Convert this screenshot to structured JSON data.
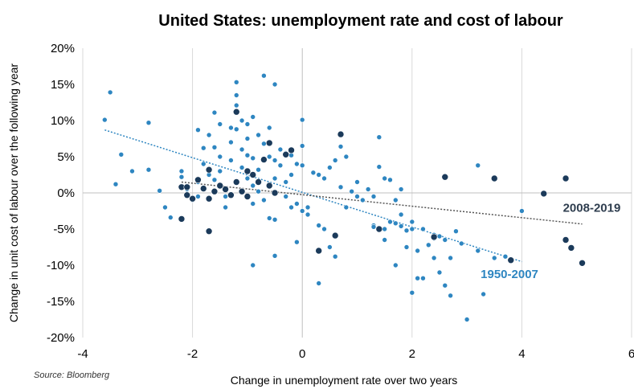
{
  "chart_data": {
    "type": "scatter",
    "title": "United States: unemployment rate and cost of labour",
    "xlabel": "Change in unemployment rate over two years",
    "ylabel": "Change in unit cost of labour over the following year",
    "source": "Source: Bloomberg",
    "xlim": [
      -4,
      6
    ],
    "ylim": [
      -20,
      20
    ],
    "x_ticks": [
      -4,
      -2,
      0,
      2,
      4,
      6
    ],
    "x_tick_labels": [
      "-4",
      "-2",
      "0",
      "2",
      "4",
      "6"
    ],
    "y_ticks": [
      20,
      15,
      10,
      5,
      0,
      -5,
      -10,
      -15,
      -20
    ],
    "y_tick_labels": [
      "20%",
      "15%",
      "10%",
      "5%",
      "0%",
      "-5%",
      "-10%",
      "-15%",
      "-20%"
    ],
    "grid": "vertical",
    "series": [
      {
        "name": "1950-2007",
        "color": "#2e86c1",
        "trendline": {
          "x": [
            -3.6,
            4.0
          ],
          "y": [
            8.7,
            -9.5
          ],
          "color": "#2e86c1"
        },
        "points": [
          [
            -3.6,
            10.1
          ],
          [
            -3.5,
            13.9
          ],
          [
            -3.4,
            1.2
          ],
          [
            -3.3,
            5.3
          ],
          [
            -3.1,
            3.0
          ],
          [
            -2.8,
            9.7
          ],
          [
            -2.8,
            3.2
          ],
          [
            -2.6,
            0.3
          ],
          [
            -2.5,
            -2.0
          ],
          [
            -2.4,
            -3.4
          ],
          [
            -2.2,
            3.0
          ],
          [
            -2.2,
            2.2
          ],
          [
            -2.1,
            0.5
          ],
          [
            -2.0,
            -1.0
          ],
          [
            -1.9,
            1.5
          ],
          [
            -1.9,
            -0.5
          ],
          [
            -1.9,
            8.7
          ],
          [
            -1.8,
            6.2
          ],
          [
            -1.8,
            4.0
          ],
          [
            -1.7,
            8.0
          ],
          [
            -1.7,
            2.5
          ],
          [
            -1.6,
            11.1
          ],
          [
            -1.6,
            6.3
          ],
          [
            -1.6,
            1.8
          ],
          [
            -1.5,
            9.5
          ],
          [
            -1.5,
            5.0
          ],
          [
            -1.5,
            3.0
          ],
          [
            -1.4,
            -0.5
          ],
          [
            -1.4,
            -2.0
          ],
          [
            -1.3,
            9.0
          ],
          [
            -1.3,
            7.0
          ],
          [
            -1.3,
            4.5
          ],
          [
            -1.2,
            15.3
          ],
          [
            -1.2,
            13.5
          ],
          [
            -1.2,
            12.1
          ],
          [
            -1.2,
            8.8
          ],
          [
            -1.1,
            10.0
          ],
          [
            -1.1,
            6.0
          ],
          [
            -1.1,
            3.5
          ],
          [
            -1.0,
            9.5
          ],
          [
            -1.0,
            7.5
          ],
          [
            -1.0,
            5.2
          ],
          [
            -1.0,
            2.0
          ],
          [
            -0.9,
            10.5
          ],
          [
            -0.9,
            4.8
          ],
          [
            -0.9,
            1.0
          ],
          [
            -0.9,
            -1.5
          ],
          [
            -0.9,
            -10.0
          ],
          [
            -0.8,
            8.0
          ],
          [
            -0.8,
            3.2
          ],
          [
            -0.8,
            0.2
          ],
          [
            -0.7,
            16.2
          ],
          [
            -0.7,
            6.8
          ],
          [
            -0.7,
            -1.0
          ],
          [
            -0.6,
            9.0
          ],
          [
            -0.6,
            5.0
          ],
          [
            -0.6,
            -3.5
          ],
          [
            -0.5,
            15.0
          ],
          [
            -0.5,
            4.5
          ],
          [
            -0.5,
            2.0
          ],
          [
            -0.5,
            -3.7
          ],
          [
            -0.5,
            -8.7
          ],
          [
            -0.4,
            6.0
          ],
          [
            -0.4,
            3.8
          ],
          [
            -0.3,
            5.5
          ],
          [
            -0.3,
            1.5
          ],
          [
            -0.3,
            -0.5
          ],
          [
            -0.2,
            5.2
          ],
          [
            -0.2,
            2.5
          ],
          [
            -0.2,
            -2.0
          ],
          [
            -0.1,
            4.0
          ],
          [
            -0.1,
            -1.5
          ],
          [
            -0.1,
            -6.8
          ],
          [
            0.0,
            10.1
          ],
          [
            0.0,
            6.5
          ],
          [
            0.0,
            3.8
          ],
          [
            0.0,
            -2.5
          ],
          [
            0.1,
            -2.0
          ],
          [
            0.1,
            -3.0
          ],
          [
            0.2,
            2.8
          ],
          [
            0.3,
            2.5
          ],
          [
            0.3,
            -4.5
          ],
          [
            0.3,
            -12.5
          ],
          [
            0.4,
            2.0
          ],
          [
            0.4,
            -5.0
          ],
          [
            0.5,
            3.5
          ],
          [
            0.5,
            -7.5
          ],
          [
            0.6,
            4.5
          ],
          [
            0.6,
            -8.8
          ],
          [
            0.7,
            6.4
          ],
          [
            0.7,
            0.8
          ],
          [
            0.8,
            5.0
          ],
          [
            0.8,
            -2.0
          ],
          [
            0.9,
            0.2
          ],
          [
            1.0,
            1.5
          ],
          [
            1.0,
            -0.5
          ],
          [
            1.1,
            -1.0
          ],
          [
            1.2,
            0.5
          ],
          [
            1.3,
            -4.5
          ],
          [
            1.3,
            -4.7
          ],
          [
            1.3,
            -0.5
          ],
          [
            1.4,
            7.7
          ],
          [
            1.4,
            3.6
          ],
          [
            1.5,
            2.0
          ],
          [
            1.5,
            -5.0
          ],
          [
            1.5,
            -6.5
          ],
          [
            1.6,
            -4.0
          ],
          [
            1.6,
            1.8
          ],
          [
            1.7,
            -1.0
          ],
          [
            1.7,
            -4.2
          ],
          [
            1.7,
            -10.0
          ],
          [
            1.8,
            0.5
          ],
          [
            1.8,
            -3.0
          ],
          [
            1.8,
            -4.6
          ],
          [
            1.9,
            -5.2
          ],
          [
            1.9,
            -7.5
          ],
          [
            2.0,
            -4.0
          ],
          [
            2.0,
            -5.0
          ],
          [
            2.0,
            -13.8
          ],
          [
            2.1,
            -8.0
          ],
          [
            2.1,
            -11.8
          ],
          [
            2.2,
            -5.0
          ],
          [
            2.2,
            -11.8
          ],
          [
            2.3,
            -7.2
          ],
          [
            2.4,
            -6.3
          ],
          [
            2.4,
            -9.0
          ],
          [
            2.5,
            -6.0
          ],
          [
            2.5,
            -11.0
          ],
          [
            2.6,
            -6.5
          ],
          [
            2.6,
            -12.8
          ],
          [
            2.7,
            -9.0
          ],
          [
            2.7,
            -14.2
          ],
          [
            2.8,
            -5.3
          ],
          [
            2.9,
            -7.0
          ],
          [
            3.0,
            -17.5
          ],
          [
            3.2,
            3.8
          ],
          [
            3.2,
            -8.0
          ],
          [
            3.3,
            -14.0
          ],
          [
            3.5,
            -9.0
          ],
          [
            3.7,
            -8.8
          ],
          [
            4.0,
            -2.5
          ],
          [
            2.4,
            -5.8
          ]
        ]
      },
      {
        "name": "2008-2019",
        "color": "#1b3a5a",
        "trendline": {
          "x": [
            -2.2,
            5.1
          ],
          "y": [
            1.5,
            -4.3
          ],
          "color": "#555555"
        },
        "points": [
          [
            -2.2,
            0.8
          ],
          [
            -2.2,
            -3.6
          ],
          [
            -2.1,
            0.8
          ],
          [
            -2.1,
            -0.3
          ],
          [
            -2.0,
            -0.8
          ],
          [
            -1.9,
            1.8
          ],
          [
            -1.8,
            0.6
          ],
          [
            -1.7,
            -0.8
          ],
          [
            -1.7,
            3.2
          ],
          [
            -1.7,
            -5.3
          ],
          [
            -1.6,
            0.2
          ],
          [
            -1.5,
            1.0
          ],
          [
            -1.4,
            0.5
          ],
          [
            -1.3,
            -0.3
          ],
          [
            -1.2,
            11.2
          ],
          [
            -1.2,
            1.5
          ],
          [
            -1.1,
            0.2
          ],
          [
            -1.0,
            3.0
          ],
          [
            -1.0,
            -0.5
          ],
          [
            -0.9,
            2.5
          ],
          [
            -0.8,
            1.5
          ],
          [
            -0.7,
            4.6
          ],
          [
            -0.6,
            6.9
          ],
          [
            -0.6,
            1.0
          ],
          [
            -0.5,
            0.0
          ],
          [
            -0.3,
            5.3
          ],
          [
            -0.2,
            5.9
          ],
          [
            0.3,
            -8.0
          ],
          [
            0.6,
            -5.9
          ],
          [
            0.7,
            8.1
          ],
          [
            1.4,
            -5.0
          ],
          [
            2.4,
            -6.1
          ],
          [
            2.6,
            2.2
          ],
          [
            3.5,
            2.0
          ],
          [
            3.8,
            -9.3
          ],
          [
            4.4,
            -0.1
          ],
          [
            4.8,
            2.0
          ],
          [
            4.8,
            -6.5
          ],
          [
            4.9,
            -7.6
          ],
          [
            5.1,
            -9.7
          ]
        ]
      }
    ]
  }
}
